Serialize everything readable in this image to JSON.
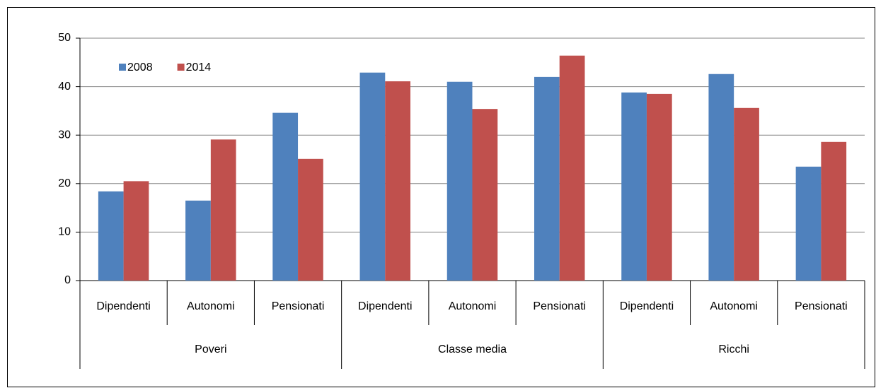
{
  "chart_data": {
    "type": "bar",
    "categories": [
      "Dipendenti",
      "Autonomi",
      "Pensionati",
      "Dipendenti",
      "Autonomi",
      "Pensionati",
      "Dipendenti",
      "Autonomi",
      "Pensionati"
    ],
    "group_labels": [
      "Poveri",
      "Classe media",
      "Ricchi"
    ],
    "series": [
      {
        "name": "2008",
        "color": "#4f81bd",
        "values": [
          18.4,
          16.5,
          34.6,
          42.9,
          41.0,
          42.0,
          38.8,
          42.6,
          23.5
        ]
      },
      {
        "name": "2014",
        "color": "#c0504d",
        "values": [
          20.5,
          29.1,
          25.1,
          41.1,
          35.4,
          46.4,
          38.5,
          35.6,
          28.6
        ]
      }
    ],
    "ylim": [
      0,
      50
    ],
    "yticks": [
      0,
      10,
      20,
      30,
      40,
      50
    ],
    "grid": true,
    "legend": "top-left"
  }
}
